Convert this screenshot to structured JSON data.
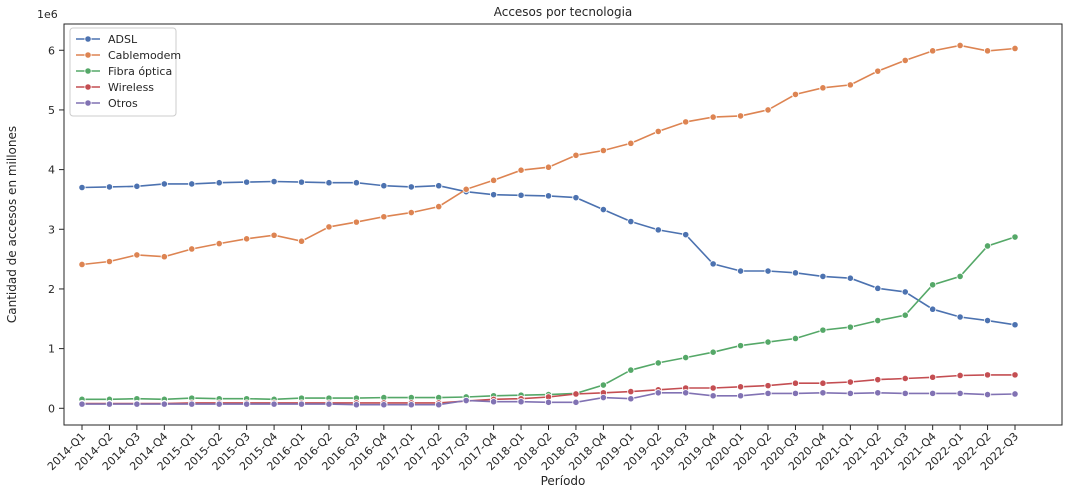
{
  "chart_data": {
    "type": "line",
    "title": "Accesos por tecnologia",
    "xlabel": "Período",
    "ylabel": "Cantidad de accesos en millones",
    "y_offset_label": "1e6",
    "ylim": [
      -0.28,
      6.44
    ],
    "yticks": [
      0,
      1,
      2,
      3,
      4,
      5,
      6
    ],
    "legend_position": "top-left",
    "grid": false,
    "categories": [
      "2014-Q1",
      "2014-Q2",
      "2014-Q3",
      "2014-Q4",
      "2015-Q1",
      "2015-Q2",
      "2015-Q3",
      "2015-Q4",
      "2016-Q1",
      "2016-Q2",
      "2016-Q3",
      "2016-Q4",
      "2017-Q1",
      "2017-Q2",
      "2017-Q3",
      "2017-Q4",
      "2018-Q1",
      "2018-Q2",
      "2018-Q3",
      "2018-Q4",
      "2019-Q1",
      "2019-Q2",
      "2019-Q3",
      "2019-Q4",
      "2020-Q1",
      "2020-Q2",
      "2020-Q3",
      "2020-Q4",
      "2021-Q1",
      "2021-Q2",
      "2021-Q3",
      "2021-Q4",
      "2022-Q1",
      "2022-Q2",
      "2022-Q3"
    ],
    "series": [
      {
        "name": "ADSL",
        "color": "#4c72b0",
        "values": [
          3.7,
          3.71,
          3.72,
          3.76,
          3.76,
          3.78,
          3.79,
          3.8,
          3.79,
          3.78,
          3.78,
          3.73,
          3.71,
          3.73,
          3.63,
          3.58,
          3.57,
          3.56,
          3.53,
          3.33,
          3.13,
          2.99,
          2.91,
          2.42,
          2.3,
          2.3,
          2.27,
          2.21,
          2.18,
          2.01,
          1.95,
          1.66,
          1.53,
          1.47,
          1.4
        ]
      },
      {
        "name": "Cablemodem",
        "color": "#dd8452",
        "values": [
          2.41,
          2.46,
          2.57,
          2.54,
          2.67,
          2.76,
          2.84,
          2.9,
          2.8,
          3.04,
          3.12,
          3.21,
          3.28,
          3.38,
          3.67,
          3.82,
          3.99,
          4.04,
          4.24,
          4.32,
          4.44,
          4.64,
          4.8,
          4.88,
          4.9,
          5.0,
          5.26,
          5.37,
          5.42,
          5.65,
          5.83,
          5.99,
          6.08,
          5.99,
          6.03
        ]
      },
      {
        "name": "Fibra óptica",
        "color": "#55a868",
        "values": [
          0.15,
          0.15,
          0.16,
          0.15,
          0.17,
          0.16,
          0.16,
          0.15,
          0.17,
          0.17,
          0.17,
          0.18,
          0.18,
          0.18,
          0.19,
          0.21,
          0.22,
          0.23,
          0.25,
          0.39,
          0.64,
          0.76,
          0.85,
          0.94,
          1.05,
          1.11,
          1.17,
          1.31,
          1.36,
          1.47,
          1.56,
          2.07,
          2.21,
          2.72,
          2.87
        ]
      },
      {
        "name": "Wireless",
        "color": "#c44e52",
        "values": [
          0.08,
          0.08,
          0.08,
          0.08,
          0.09,
          0.09,
          0.09,
          0.09,
          0.09,
          0.09,
          0.09,
          0.09,
          0.09,
          0.09,
          0.12,
          0.15,
          0.16,
          0.19,
          0.24,
          0.26,
          0.28,
          0.31,
          0.34,
          0.34,
          0.36,
          0.38,
          0.42,
          0.42,
          0.44,
          0.48,
          0.5,
          0.52,
          0.55,
          0.56,
          0.56
        ]
      },
      {
        "name": "Otros",
        "color": "#8172b3",
        "values": [
          0.07,
          0.07,
          0.07,
          0.07,
          0.07,
          0.07,
          0.07,
          0.07,
          0.07,
          0.07,
          0.06,
          0.06,
          0.06,
          0.06,
          0.13,
          0.11,
          0.11,
          0.1,
          0.1,
          0.18,
          0.16,
          0.26,
          0.26,
          0.21,
          0.21,
          0.25,
          0.25,
          0.26,
          0.25,
          0.26,
          0.25,
          0.25,
          0.25,
          0.23,
          0.24
        ]
      }
    ]
  }
}
